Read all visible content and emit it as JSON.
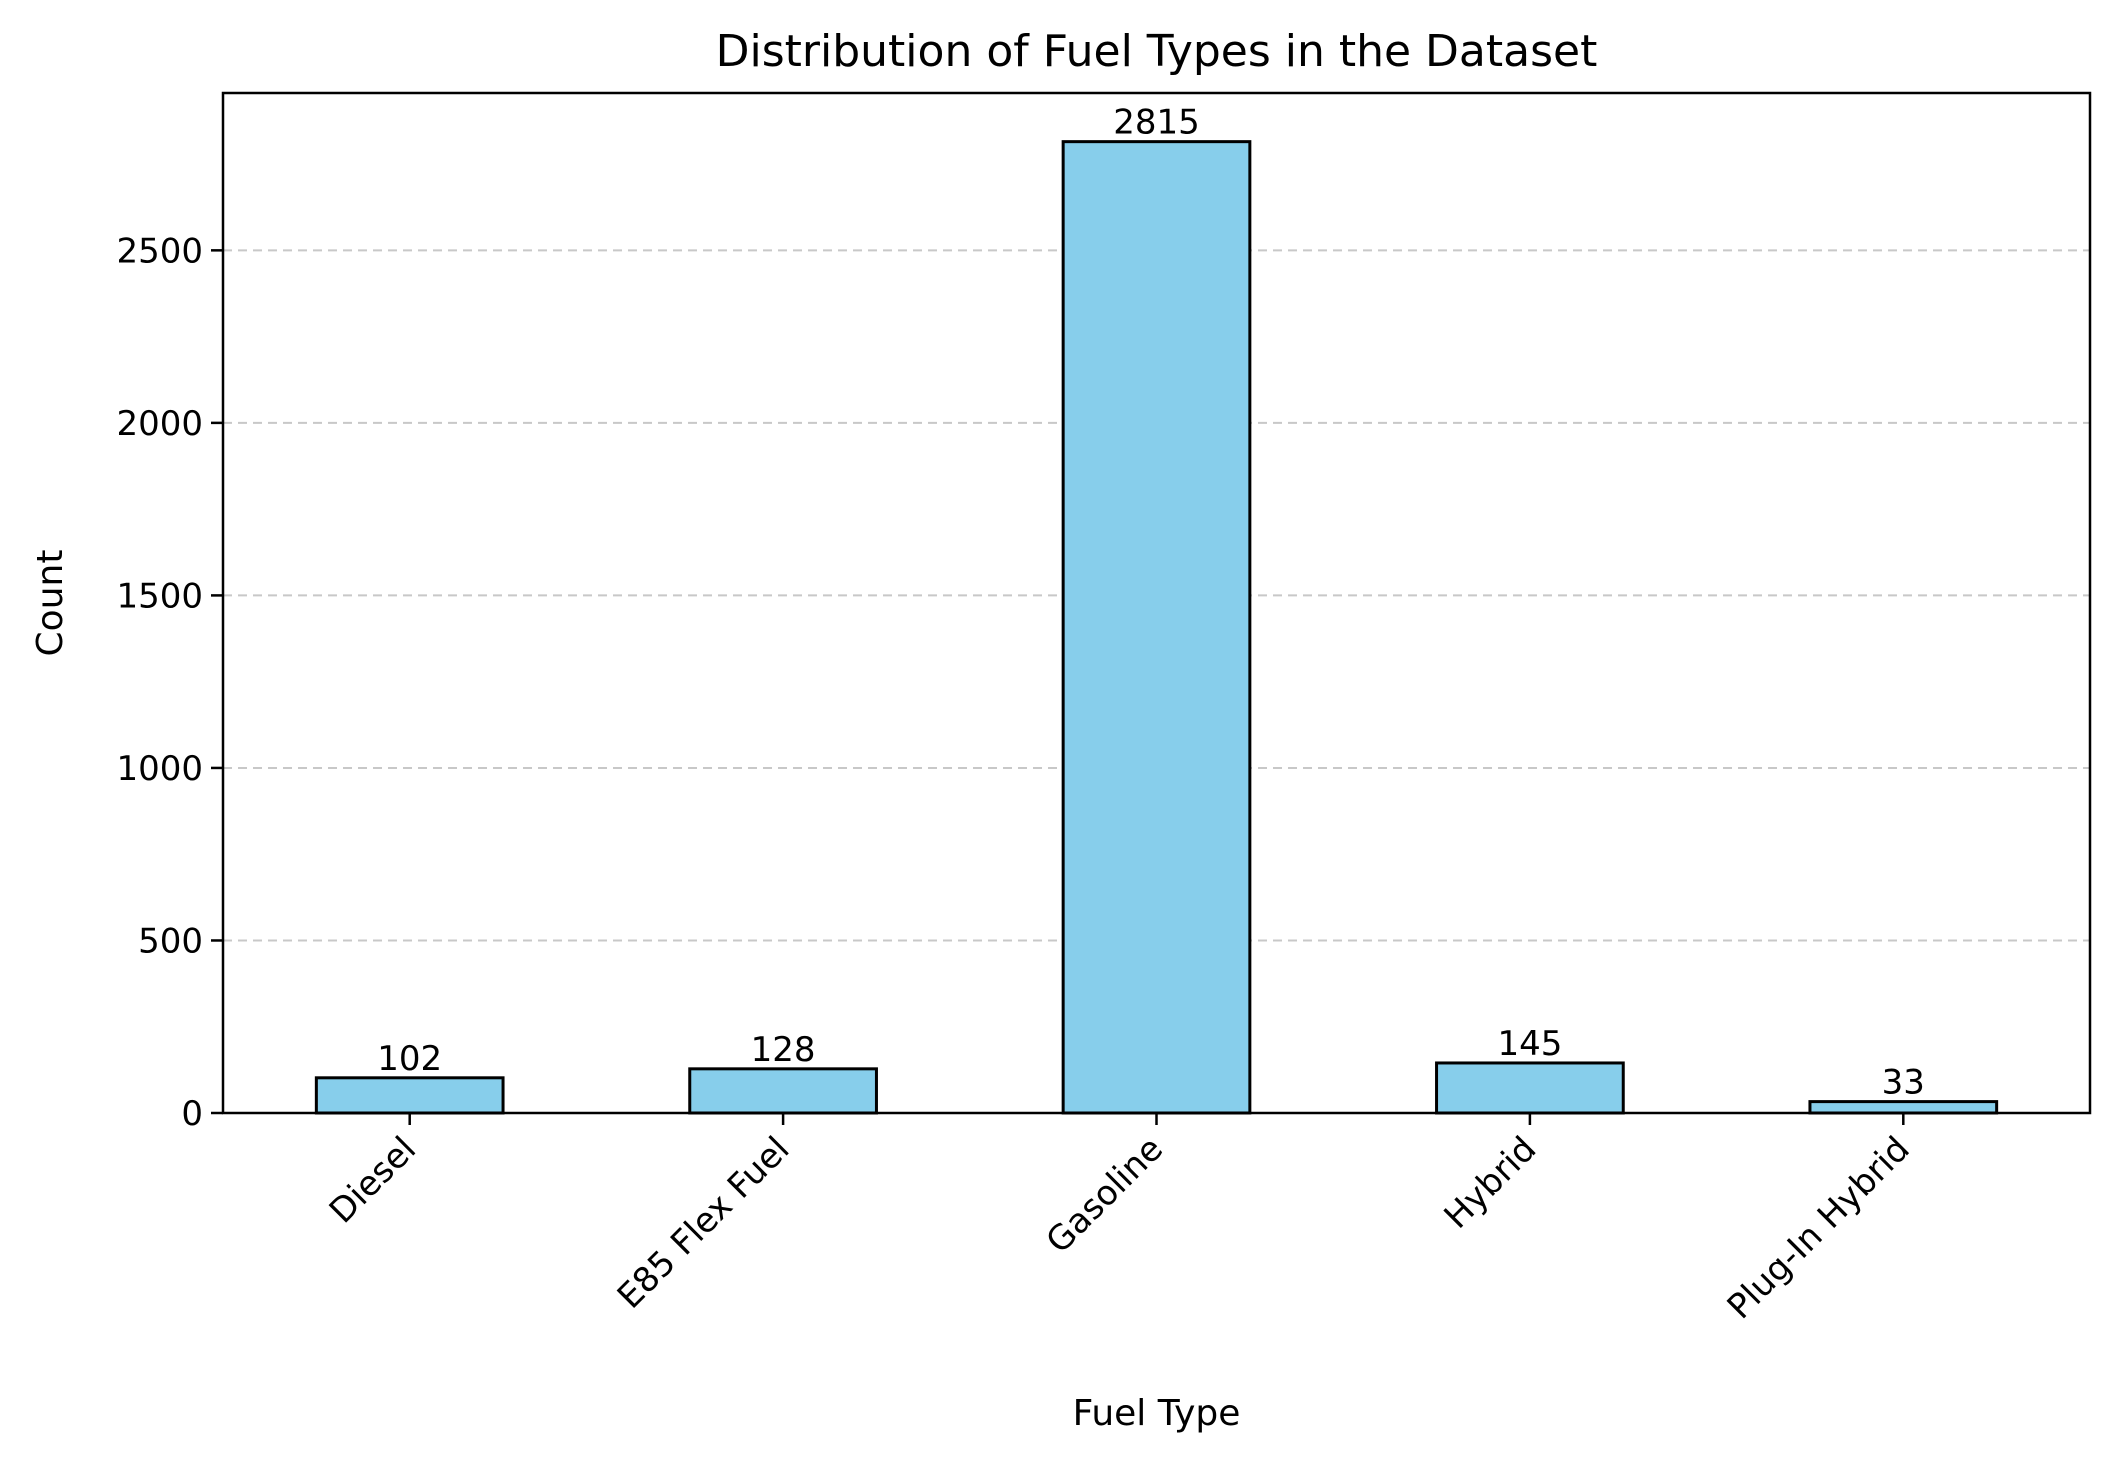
{
  "chart_data": {
    "type": "bar",
    "title": "Distribution of Fuel Types in the Dataset",
    "xlabel": "Fuel Type",
    "ylabel": "Count",
    "categories": [
      "Diesel",
      "E85 Flex Fuel",
      "Gasoline",
      "Hybrid",
      "Plug-In Hybrid"
    ],
    "values": [
      102,
      128,
      2815,
      145,
      33
    ],
    "data_labels": [
      "102",
      "128",
      "2815",
      "145",
      "33"
    ],
    "ylim": [
      0,
      2956
    ],
    "yticks": [
      0,
      500,
      1000,
      1500,
      2000,
      2500
    ],
    "ytick_labels": [
      "0",
      "500",
      "1000",
      "1500",
      "2000",
      "2500"
    ],
    "grid": "y-dashed",
    "legend": "none",
    "bar_color": "#87CEEB",
    "edge_color": "#000000",
    "grid_color": "#c8c8c8"
  }
}
